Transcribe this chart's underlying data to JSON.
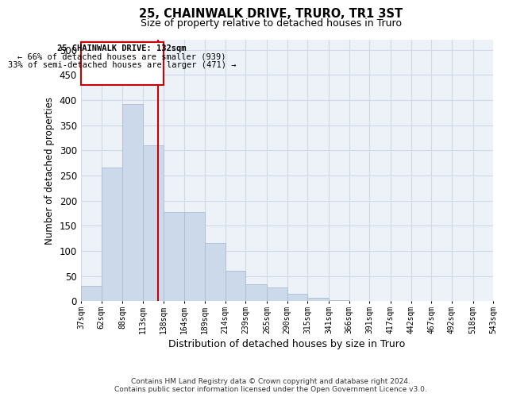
{
  "title": "25, CHAINWALK DRIVE, TRURO, TR1 3ST",
  "subtitle": "Size of property relative to detached houses in Truro",
  "xlabel": "Distribution of detached houses by size in Truro",
  "ylabel": "Number of detached properties",
  "footer1": "Contains HM Land Registry data © Crown copyright and database right 2024.",
  "footer2": "Contains public sector information licensed under the Open Government Licence v3.0.",
  "property_label": "25 CHAINWALK DRIVE: 132sqm",
  "annotation_line1": "← 66% of detached houses are smaller (939)",
  "annotation_line2": "33% of semi-detached houses are larger (471) →",
  "property_size": 132,
  "bar_color": "#ccd9ea",
  "bar_edge_color": "#aabdd4",
  "vline_color": "#cc0000",
  "annotation_box_edgecolor": "#cc0000",
  "grid_color": "#d0dae6",
  "background_color": "#edf2f8",
  "ylim": [
    0,
    520
  ],
  "yticks": [
    0,
    50,
    100,
    150,
    200,
    250,
    300,
    350,
    400,
    450,
    500
  ],
  "bin_edges": [
    37,
    62,
    88,
    113,
    138,
    164,
    189,
    214,
    239,
    265,
    290,
    315,
    341,
    366,
    391,
    417,
    442,
    467,
    492,
    518,
    543
  ],
  "bin_labels": [
    "37sqm",
    "62sqm",
    "88sqm",
    "113sqm",
    "138sqm",
    "164sqm",
    "189sqm",
    "214sqm",
    "239sqm",
    "265sqm",
    "290sqm",
    "315sqm",
    "341sqm",
    "366sqm",
    "391sqm",
    "417sqm",
    "442sqm",
    "467sqm",
    "492sqm",
    "518sqm",
    "543sqm"
  ],
  "bar_heights": [
    30,
    265,
    392,
    310,
    178,
    178,
    115,
    60,
    33,
    27,
    14,
    7,
    2,
    1,
    1,
    1,
    0,
    0,
    0,
    1
  ]
}
